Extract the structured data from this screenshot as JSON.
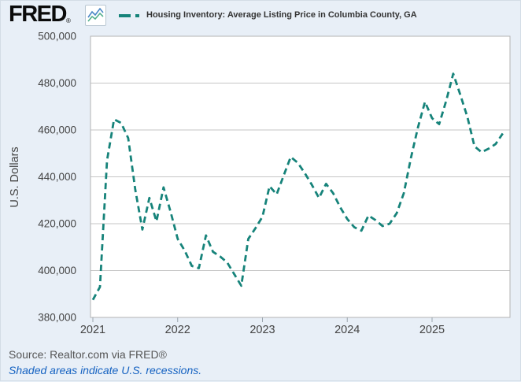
{
  "header": {
    "logo_text": "FRED",
    "registered_mark": "®",
    "legend_title": "Housing Inventory: Average Listing Price in Columbia County, GA"
  },
  "colors": {
    "line_teal": "#16837a",
    "background": "#e8eff7",
    "gridline": "#c6c6c6",
    "axis_text": "#444444",
    "note_blue": "#1562c1"
  },
  "footer": {
    "source_text": "Source: Realtor.com via FRED®",
    "note_text": "Shaded areas indicate U.S. recessions."
  },
  "chart_data": {
    "type": "line",
    "title": "Housing Inventory: Average Listing Price in Columbia County, GA",
    "ylabel": "U.S. Dollars",
    "ylim": [
      380000,
      500000
    ],
    "ytick_values": [
      500000,
      480000,
      460000,
      440000,
      420000,
      400000,
      380000
    ],
    "ytick_labels": [
      "500,000",
      "480,000",
      "460,000",
      "440,000",
      "420,000",
      "400,000",
      "380,000"
    ],
    "xtick_labels": [
      "2021",
      "2022",
      "2023",
      "2024",
      "2025"
    ],
    "grid": true,
    "legend_position": "top",
    "line_style": "dashed",
    "line_color": "#16837a",
    "series": [
      {
        "name": "Housing Inventory: Average Listing Price in Columbia County, GA",
        "points": [
          [
            "2021-01",
            387500
          ],
          [
            "2021-02",
            393000
          ],
          [
            "2021-03",
            447000
          ],
          [
            "2021-04",
            464500
          ],
          [
            "2021-05",
            463000
          ],
          [
            "2021-06",
            456500
          ],
          [
            "2021-07",
            434500
          ],
          [
            "2021-08",
            417500
          ],
          [
            "2021-09",
            431000
          ],
          [
            "2021-10",
            421000
          ],
          [
            "2021-11",
            435500
          ],
          [
            "2021-12",
            425000
          ],
          [
            "2022-01",
            413500
          ],
          [
            "2022-02",
            408500
          ],
          [
            "2022-03",
            402000
          ],
          [
            "2022-04",
            401000
          ],
          [
            "2022-05",
            415000
          ],
          [
            "2022-06",
            408000
          ],
          [
            "2022-07",
            406000
          ],
          [
            "2022-08",
            403500
          ],
          [
            "2022-09",
            398500
          ],
          [
            "2022-10",
            393500
          ],
          [
            "2022-11",
            413500
          ],
          [
            "2022-12",
            418000
          ],
          [
            "2023-01",
            423000
          ],
          [
            "2023-02",
            436000
          ],
          [
            "2023-03",
            432500
          ],
          [
            "2023-04",
            440500
          ],
          [
            "2023-05",
            448500
          ],
          [
            "2023-06",
            446000
          ],
          [
            "2023-07",
            441500
          ],
          [
            "2023-08",
            436500
          ],
          [
            "2023-09",
            431000
          ],
          [
            "2023-10",
            437000
          ],
          [
            "2023-11",
            433000
          ],
          [
            "2023-12",
            427000
          ],
          [
            "2024-01",
            422000
          ],
          [
            "2024-02",
            418500
          ],
          [
            "2024-03",
            417000
          ],
          [
            "2024-04",
            423500
          ],
          [
            "2024-05",
            421500
          ],
          [
            "2024-06",
            419000
          ],
          [
            "2024-07",
            420000
          ],
          [
            "2024-08",
            424500
          ],
          [
            "2024-09",
            433000
          ],
          [
            "2024-10",
            448000
          ],
          [
            "2024-11",
            461000
          ],
          [
            "2024-12",
            472000
          ],
          [
            "2025-01",
            465000
          ],
          [
            "2025-02",
            462500
          ],
          [
            "2025-03",
            472500
          ],
          [
            "2025-04",
            484000
          ],
          [
            "2025-05",
            475000
          ],
          [
            "2025-06",
            465500
          ],
          [
            "2025-07",
            453000
          ],
          [
            "2025-08",
            450500
          ],
          [
            "2025-09",
            452000
          ],
          [
            "2025-10",
            454000
          ],
          [
            "2025-11",
            458500
          ]
        ]
      }
    ]
  }
}
